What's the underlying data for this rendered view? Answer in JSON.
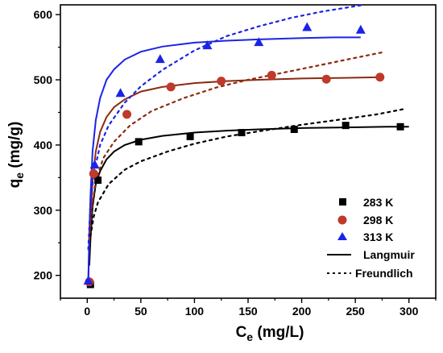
{
  "chart_data": {
    "type": "scatter",
    "xlabel": {
      "main": "C",
      "sub": "e",
      "unit": " (mg/L)"
    },
    "ylabel": {
      "main": "q",
      "sub": "e",
      "unit": " (mg/g)"
    },
    "xlim": [
      -25,
      325
    ],
    "ylim": [
      165,
      615
    ],
    "x_ticks": [
      0,
      50,
      100,
      150,
      200,
      250,
      300
    ],
    "y_ticks": [
      200,
      300,
      400,
      500,
      600
    ],
    "grid": false,
    "legend_position": "bottom-right",
    "series": [
      {
        "name": "283 K",
        "marker": "square",
        "color": "#000000",
        "highlight": "#b8b8b8",
        "x": [
          3,
          10,
          48,
          96,
          144,
          193,
          241,
          292
        ],
        "y": [
          186,
          346,
          405,
          413,
          419,
          424,
          430,
          428
        ]
      },
      {
        "name": "298 K",
        "marker": "circle",
        "color": "#c0392b",
        "highlight": "#d9a6e6",
        "x": [
          2,
          6,
          37,
          78,
          125,
          172,
          223,
          273
        ],
        "y": [
          190,
          356,
          447,
          489,
          498,
          507,
          501,
          504
        ]
      },
      {
        "name": "313 K",
        "marker": "triangle",
        "color": "#1a24e6",
        "highlight": "#9090ff",
        "x": [
          1,
          7,
          31,
          68,
          112,
          160,
          205,
          255
        ],
        "y": [
          192,
          370,
          480,
          532,
          553,
          558,
          581,
          577
        ]
      }
    ],
    "fit_lines": [
      {
        "name": "Langmuir",
        "style": "solid",
        "curves": [
          {
            "series": "283 K",
            "color": "#000000",
            "x": [
              2,
              3,
              5,
              8,
              12,
              18,
              25,
              35,
              50,
              70,
              100,
              130,
              160,
              200,
              240,
              280,
              300
            ],
            "y": [
              215,
              255,
              305,
              340,
              360,
              378,
              390,
              400,
              408,
              414,
              419,
              422,
              424,
              426,
              427,
              428,
              428
            ]
          },
          {
            "series": "298 K",
            "color": "#8b2a12",
            "x": [
              1,
              2,
              3,
              5,
              8,
              12,
              18,
              25,
              35,
              50,
              70,
              100,
              130,
              160,
              200,
              240,
              275
            ],
            "y": [
              190,
              250,
              290,
              345,
              390,
              420,
              443,
              458,
              470,
              482,
              489,
              495,
              498,
              500,
              502,
              503,
              504
            ]
          },
          {
            "series": "313 K",
            "color": "#1a24e6",
            "x": [
              1,
              2,
              3,
              5,
              8,
              12,
              18,
              25,
              35,
              50,
              70,
              100,
              130,
              160,
              200,
              230,
              255
            ],
            "y": [
              190,
              265,
              320,
              390,
              438,
              472,
              500,
              516,
              531,
              543,
              551,
              557,
              560,
              562,
              564,
              565,
              565
            ]
          }
        ]
      },
      {
        "name": "Freundlich",
        "style": "dotted",
        "curves": [
          {
            "series": "283 K",
            "color": "#000000",
            "x": [
              3,
              6,
              10,
              20,
              35,
              50,
              75,
              100,
              130,
              160,
              200,
              240,
              270,
              295
            ],
            "y": [
              260,
              290,
              312,
              340,
              362,
              375,
              390,
              402,
              413,
              421,
              431,
              440,
              447,
              455
            ]
          },
          {
            "series": "298 K",
            "color": "#8b2a12",
            "x": [
              2,
              4,
              8,
              15,
              25,
              40,
              60,
              90,
              120,
              150,
              180,
              210,
              245,
              275
            ],
            "y": [
              255,
              300,
              345,
              380,
              405,
              430,
              452,
              472,
              488,
              500,
              510,
              520,
              532,
              542
            ]
          },
          {
            "series": "313 K",
            "color": "#1a24e6",
            "x": [
              1,
              3,
              6,
              12,
              20,
              35,
              50,
              70,
              100,
              130,
              160,
              190,
              220,
              258
            ],
            "y": [
              240,
              310,
              355,
              400,
              430,
              465,
              490,
              515,
              545,
              567,
              582,
              595,
              605,
              615
            ]
          }
        ]
      }
    ]
  }
}
